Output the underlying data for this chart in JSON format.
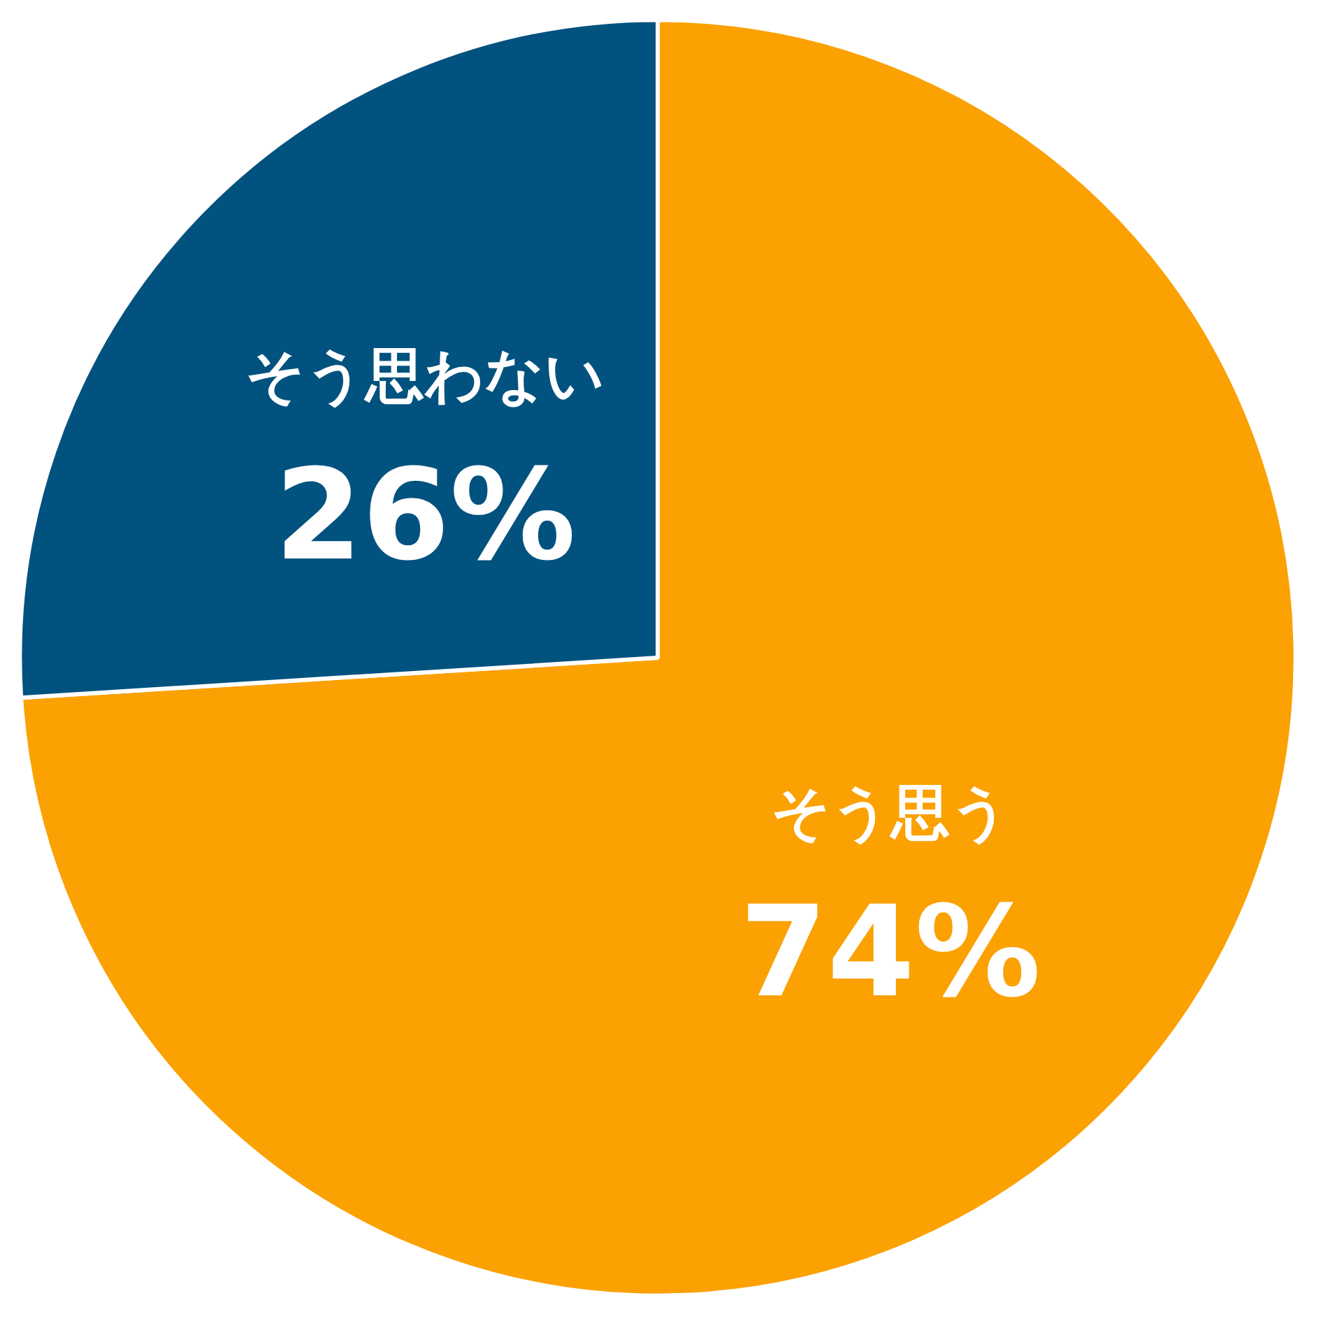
{
  "chart_data": {
    "type": "pie",
    "categories": [
      "そう思う",
      "そう思わない"
    ],
    "values": [
      74,
      26
    ],
    "colors": [
      "#fba102",
      "#02527f"
    ],
    "value_labels": [
      "74%",
      "26%"
    ]
  }
}
